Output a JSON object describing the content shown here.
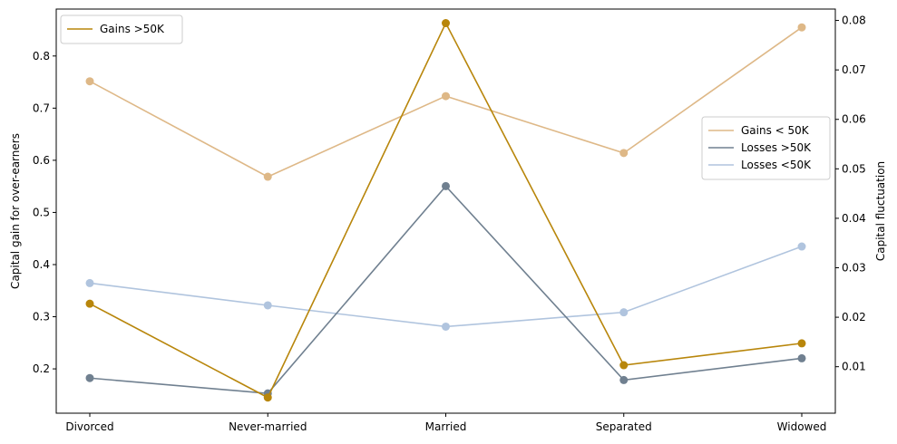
{
  "chart_data": {
    "type": "line",
    "categories": [
      "Divorced",
      "Never-married",
      "Married",
      "Separated",
      "Widowed"
    ],
    "left_axis": {
      "label": "Capital gain for over-earners",
      "ylim": [
        0.115,
        0.89
      ],
      "ticks": [
        0.2,
        0.3,
        0.4,
        0.5,
        0.6,
        0.7,
        0.8
      ],
      "tick_labels": [
        "0.2",
        "0.3",
        "0.4",
        "0.5",
        "0.6",
        "0.7",
        "0.8"
      ]
    },
    "right_axis": {
      "label": "Capital fluctuation",
      "ylim": [
        0.0006,
        0.0823
      ],
      "ticks": [
        0.01,
        0.02,
        0.03,
        0.04,
        0.05,
        0.06,
        0.07,
        0.08
      ],
      "tick_labels": [
        "0.01",
        "0.02",
        "0.03",
        "0.04",
        "0.05",
        "0.06",
        "0.07",
        "0.08"
      ]
    },
    "series": [
      {
        "name": "Gains >50K",
        "axis": "left",
        "color": "#b8860b",
        "values": [
          0.325,
          0.145,
          0.863,
          0.207,
          0.249
        ]
      },
      {
        "name": "Gains < 50K",
        "axis": "right",
        "color": "#deb887",
        "values": [
          0.0677,
          0.0484,
          0.0647,
          0.0532,
          0.0786
        ]
      },
      {
        "name": "Losses >50K",
        "axis": "right",
        "color": "#708090",
        "values": [
          0.0077,
          0.0046,
          0.0465,
          0.0073,
          0.0117
        ]
      },
      {
        "name": "Losses <50K",
        "axis": "right",
        "color": "#b0c4de",
        "values": [
          0.0269,
          0.0224,
          0.0181,
          0.021,
          0.0343
        ]
      }
    ],
    "legends": [
      {
        "placement": "upper-left",
        "entries": [
          "Gains >50K"
        ]
      },
      {
        "placement": "center-right",
        "entries": [
          "Gains < 50K",
          "Losses >50K",
          "Losses <50K"
        ]
      }
    ],
    "grid": false
  }
}
